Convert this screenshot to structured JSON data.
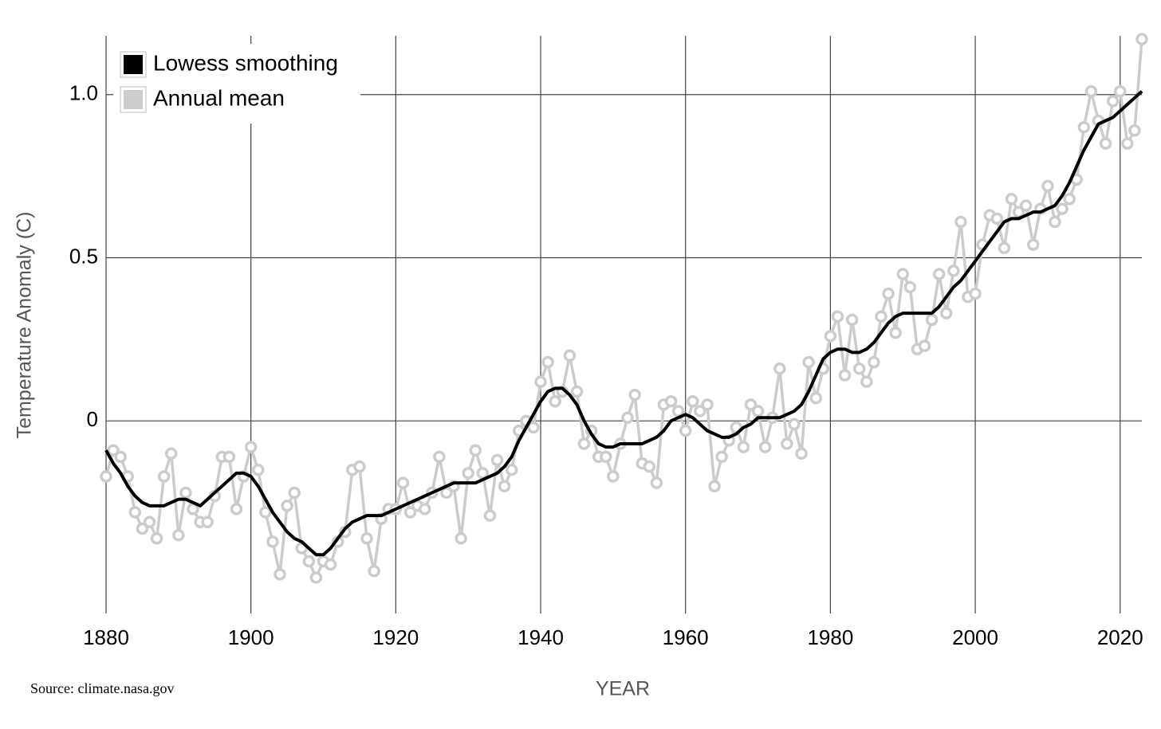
{
  "chart_data": {
    "type": "line",
    "x_label": "YEAR",
    "y_label": "Temperature Anomaly (C)",
    "source": "Source: climate.nasa.gov",
    "x": [
      1880,
      1881,
      1882,
      1883,
      1884,
      1885,
      1886,
      1887,
      1888,
      1889,
      1890,
      1891,
      1892,
      1893,
      1894,
      1895,
      1896,
      1897,
      1898,
      1899,
      1900,
      1901,
      1902,
      1903,
      1904,
      1905,
      1906,
      1907,
      1908,
      1909,
      1910,
      1911,
      1912,
      1913,
      1914,
      1915,
      1916,
      1917,
      1918,
      1919,
      1920,
      1921,
      1922,
      1923,
      1924,
      1925,
      1926,
      1927,
      1928,
      1929,
      1930,
      1931,
      1932,
      1933,
      1934,
      1935,
      1936,
      1937,
      1938,
      1939,
      1940,
      1941,
      1942,
      1943,
      1944,
      1945,
      1946,
      1947,
      1948,
      1949,
      1950,
      1951,
      1952,
      1953,
      1954,
      1955,
      1956,
      1957,
      1958,
      1959,
      1960,
      1961,
      1962,
      1963,
      1964,
      1965,
      1966,
      1967,
      1968,
      1969,
      1970,
      1971,
      1972,
      1973,
      1974,
      1975,
      1976,
      1977,
      1978,
      1979,
      1980,
      1981,
      1982,
      1983,
      1984,
      1985,
      1986,
      1987,
      1988,
      1989,
      1990,
      1991,
      1992,
      1993,
      1994,
      1995,
      1996,
      1997,
      1998,
      1999,
      2000,
      2001,
      2002,
      2003,
      2004,
      2005,
      2006,
      2007,
      2008,
      2009,
      2010,
      2011,
      2012,
      2013,
      2014,
      2015,
      2016,
      2017,
      2018,
      2019,
      2020,
      2021,
      2022,
      2023
    ],
    "series": [
      {
        "name": "Annual mean",
        "color": "#cccccc",
        "markers": true,
        "values": [
          -0.17,
          -0.09,
          -0.11,
          -0.17,
          -0.28,
          -0.33,
          -0.31,
          -0.36,
          -0.17,
          -0.1,
          -0.35,
          -0.22,
          -0.27,
          -0.31,
          -0.31,
          -0.23,
          -0.11,
          -0.11,
          -0.27,
          -0.17,
          -0.08,
          -0.15,
          -0.28,
          -0.37,
          -0.47,
          -0.26,
          -0.22,
          -0.39,
          -0.43,
          -0.48,
          -0.43,
          -0.44,
          -0.37,
          -0.34,
          -0.15,
          -0.14,
          -0.36,
          -0.46,
          -0.3,
          -0.27,
          -0.27,
          -0.19,
          -0.28,
          -0.26,
          -0.27,
          -0.22,
          -0.11,
          -0.22,
          -0.2,
          -0.36,
          -0.16,
          -0.09,
          -0.16,
          -0.29,
          -0.12,
          -0.2,
          -0.15,
          -0.03,
          0.0,
          -0.02,
          0.12,
          0.18,
          0.06,
          0.09,
          0.2,
          0.09,
          -0.07,
          -0.03,
          -0.11,
          -0.11,
          -0.17,
          -0.07,
          0.01,
          0.08,
          -0.13,
          -0.14,
          -0.19,
          0.05,
          0.06,
          0.03,
          -0.03,
          0.06,
          0.03,
          0.05,
          -0.2,
          -0.11,
          -0.06,
          -0.02,
          -0.08,
          0.05,
          0.03,
          -0.08,
          0.01,
          0.16,
          -0.07,
          -0.01,
          -0.1,
          0.18,
          0.07,
          0.16,
          0.26,
          0.32,
          0.14,
          0.31,
          0.16,
          0.12,
          0.18,
          0.32,
          0.39,
          0.27,
          0.45,
          0.41,
          0.22,
          0.23,
          0.31,
          0.45,
          0.33,
          0.46,
          0.61,
          0.38,
          0.39,
          0.54,
          0.63,
          0.62,
          0.53,
          0.68,
          0.64,
          0.66,
          0.54,
          0.65,
          0.72,
          0.61,
          0.65,
          0.68,
          0.74,
          0.9,
          1.01,
          0.92,
          0.85,
          0.98,
          1.01,
          0.85,
          0.89,
          1.17
        ]
      },
      {
        "name": "Lowess smoothing",
        "color": "#000000",
        "markers": false,
        "values": [
          -0.09,
          -0.13,
          -0.16,
          -0.2,
          -0.23,
          -0.25,
          -0.26,
          -0.26,
          -0.26,
          -0.25,
          -0.24,
          -0.24,
          -0.25,
          -0.26,
          -0.24,
          -0.22,
          -0.2,
          -0.18,
          -0.16,
          -0.16,
          -0.17,
          -0.2,
          -0.24,
          -0.28,
          -0.31,
          -0.34,
          -0.36,
          -0.37,
          -0.39,
          -0.41,
          -0.41,
          -0.39,
          -0.36,
          -0.33,
          -0.31,
          -0.3,
          -0.29,
          -0.29,
          -0.29,
          -0.28,
          -0.27,
          -0.26,
          -0.25,
          -0.24,
          -0.23,
          -0.22,
          -0.21,
          -0.2,
          -0.19,
          -0.19,
          -0.19,
          -0.19,
          -0.18,
          -0.17,
          -0.16,
          -0.14,
          -0.11,
          -0.06,
          -0.02,
          0.02,
          0.06,
          0.09,
          0.1,
          0.1,
          0.08,
          0.05,
          0.0,
          -0.04,
          -0.07,
          -0.08,
          -0.08,
          -0.07,
          -0.07,
          -0.07,
          -0.07,
          -0.06,
          -0.05,
          -0.03,
          0.0,
          0.01,
          0.02,
          0.01,
          -0.01,
          -0.03,
          -0.04,
          -0.05,
          -0.05,
          -0.04,
          -0.02,
          -0.01,
          0.01,
          0.01,
          0.01,
          0.01,
          0.02,
          0.03,
          0.05,
          0.09,
          0.14,
          0.19,
          0.21,
          0.22,
          0.22,
          0.21,
          0.21,
          0.22,
          0.24,
          0.27,
          0.3,
          0.32,
          0.33,
          0.33,
          0.33,
          0.33,
          0.33,
          0.35,
          0.38,
          0.41,
          0.43,
          0.46,
          0.49,
          0.52,
          0.55,
          0.58,
          0.61,
          0.62,
          0.62,
          0.63,
          0.64,
          0.64,
          0.65,
          0.66,
          0.69,
          0.73,
          0.78,
          0.83,
          0.87,
          0.91,
          0.92,
          0.93,
          0.95,
          0.97,
          0.99,
          1.01
        ]
      }
    ],
    "legend_order": [
      1,
      0
    ],
    "legend": "upper left",
    "xlim": [
      1880,
      2023
    ],
    "xticks": [
      1880,
      1900,
      1920,
      1940,
      1960,
      1980,
      2000,
      2020
    ],
    "ylim": [
      -0.59,
      1.18
    ],
    "yticks": [
      0,
      0.5,
      {
        "value": 1,
        "label": "1.0"
      }
    ],
    "grid": true
  }
}
